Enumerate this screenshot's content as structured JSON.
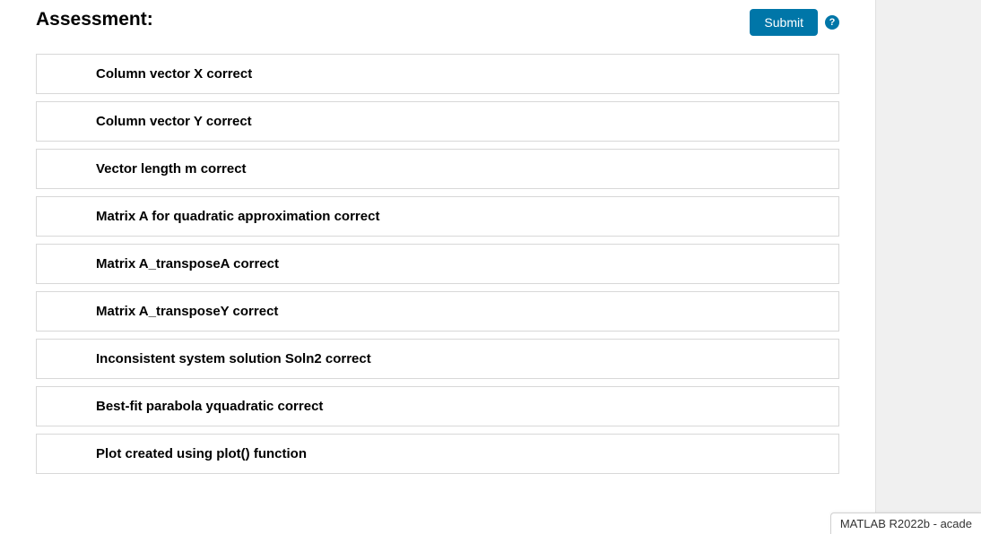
{
  "header": {
    "title": "Assessment:",
    "submit_label": "Submit",
    "help_symbol": "?"
  },
  "assessments": {
    "items": [
      {
        "label": "Column vector X correct"
      },
      {
        "label": "Column vector Y correct"
      },
      {
        "label": "Vector length m correct"
      },
      {
        "label": "Matrix A for quadratic approximation correct"
      },
      {
        "label": "Matrix A_transposeA correct"
      },
      {
        "label": "Matrix A_transposeY correct"
      },
      {
        "label": "Inconsistent system solution Soln2 correct"
      },
      {
        "label": "Best-fit parabola yquadratic correct"
      },
      {
        "label": "Plot created using plot() function"
      }
    ]
  },
  "status_bar": {
    "text": "MATLAB R2022b - acade"
  },
  "colors": {
    "primary": "#0076a8",
    "border": "#d8d8d8",
    "text": "#000000",
    "panel_bg": "#f0f0f0"
  }
}
